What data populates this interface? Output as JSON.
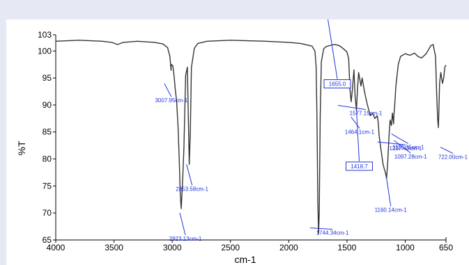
{
  "chart_data": {
    "type": "line",
    "title": "",
    "xlabel": "cm-1",
    "ylabel": "%T",
    "xlim": [
      4000,
      650
    ],
    "ylim": [
      65,
      103
    ],
    "x_reversed": true,
    "grid": false,
    "xticks": [
      4000,
      3500,
      3000,
      2500,
      2000,
      1500,
      1000,
      650
    ],
    "yticks": [
      65,
      70,
      75,
      80,
      85,
      90,
      95,
      100,
      103
    ],
    "line_color": "#333333",
    "annotation_color": "#2233dd",
    "series": [
      {
        "x": [
          4000,
          3800,
          3600,
          3520,
          3470,
          3420,
          3300,
          3150,
          3080,
          3040,
          3020,
          3010,
          3007.95,
          2995,
          2985,
          2975,
          2962,
          2950,
          2940,
          2932,
          2923.13,
          2912,
          2900,
          2885,
          2870,
          2862,
          2853.58,
          2845,
          2835,
          2810,
          2780,
          2700,
          2500,
          2200,
          2000,
          1900,
          1800,
          1775,
          1765,
          1758,
          1750,
          1744.34,
          1738,
          1730,
          1720,
          1700,
          1680,
          1650,
          1610,
          1580,
          1560,
          1530,
          1500,
          1485,
          1475,
          1464.1,
          1455,
          1440,
          1430,
          1418.7,
          1410,
          1400,
          1380,
          1370,
          1350,
          1330,
          1300,
          1280,
          1260,
          1240,
          1230,
          1225,
          1210,
          1190,
          1175,
          1165,
          1160.14,
          1150,
          1140,
          1130,
          1118.35,
          1110,
          1100,
          1097.28,
          1090,
          1080,
          1060,
          1040,
          1000,
          960,
          920,
          890,
          860,
          820,
          780,
          760,
          740,
          730,
          722,
          716,
          712,
          705,
          695,
          680,
          670,
          660,
          650
        ],
        "y": [
          101.8,
          102.0,
          101.8,
          101.6,
          101.2,
          101.6,
          101.8,
          101.6,
          101.3,
          100.6,
          99.0,
          96.4,
          97.5,
          97.3,
          95.5,
          93.2,
          90.6,
          86.0,
          80.0,
          74.0,
          70.8,
          75.5,
          82.0,
          95.5,
          97.0,
          88.0,
          79.0,
          85.0,
          97.0,
          100.5,
          101.4,
          101.8,
          102.0,
          101.8,
          101.6,
          101.4,
          100.9,
          100.0,
          97.2,
          88.0,
          72.0,
          66.2,
          70.0,
          88.0,
          98.0,
          100.4,
          100.8,
          101.0,
          101.2,
          101.1,
          100.9,
          100.4,
          99.8,
          98.5,
          93.0,
          90.6,
          92.5,
          96.5,
          91.5,
          89.1,
          93.0,
          96.0,
          93.5,
          95.0,
          92.5,
          90.5,
          88.0,
          88.5,
          87.5,
          88.0,
          86.5,
          84.5,
          82.0,
          79.0,
          77.8,
          77.0,
          76.4,
          79.5,
          84.0,
          87.2,
          86.2,
          88.5,
          86.5,
          88.0,
          90.0,
          93.5,
          97.5,
          99.0,
          99.5,
          99.2,
          99.6,
          99.0,
          98.7,
          99.5,
          101.0,
          101.2,
          99.0,
          92.0,
          87.5,
          85.8,
          88.0,
          94.0,
          96.0,
          94.0,
          95.0,
          97.0,
          97.4
        ]
      }
    ],
    "annotations": [
      {
        "label": "3007.95cm-1",
        "x": 3007.95,
        "y": 95.0
      },
      {
        "label": "2923.13cm-1",
        "x": 2923.13,
        "y": 70.8
      },
      {
        "label": "2853.58cm-1",
        "x": 2853.58,
        "y": 79.0
      },
      {
        "label": "1744.34cm-1",
        "x": 1744.34,
        "y": 66.2
      },
      {
        "label": "1655.0",
        "x": 1655.0,
        "y": 101.0,
        "boxed": true
      },
      {
        "label": "1577.15cm-1",
        "x": 1577.15,
        "y": 92.5
      },
      {
        "label": "1464.1cm-1",
        "x": 1464.1,
        "y": 90.6
      },
      {
        "label": "1418.7",
        "x": 1418.7,
        "y": 89.1,
        "boxed": true
      },
      {
        "label": "1237.43cm-1",
        "x": 1237.43,
        "y": 86.5
      },
      {
        "label": "1160.14cm-1",
        "x": 1160.14,
        "y": 76.4
      },
      {
        "label": "1118.35cm-1",
        "x": 1118.35,
        "y": 86.2
      },
      {
        "label": "1097.28cm-1",
        "x": 1097.28,
        "y": 86.0
      },
      {
        "label": "722.00cm-1",
        "x": 722.0,
        "y": 85.8
      }
    ]
  }
}
